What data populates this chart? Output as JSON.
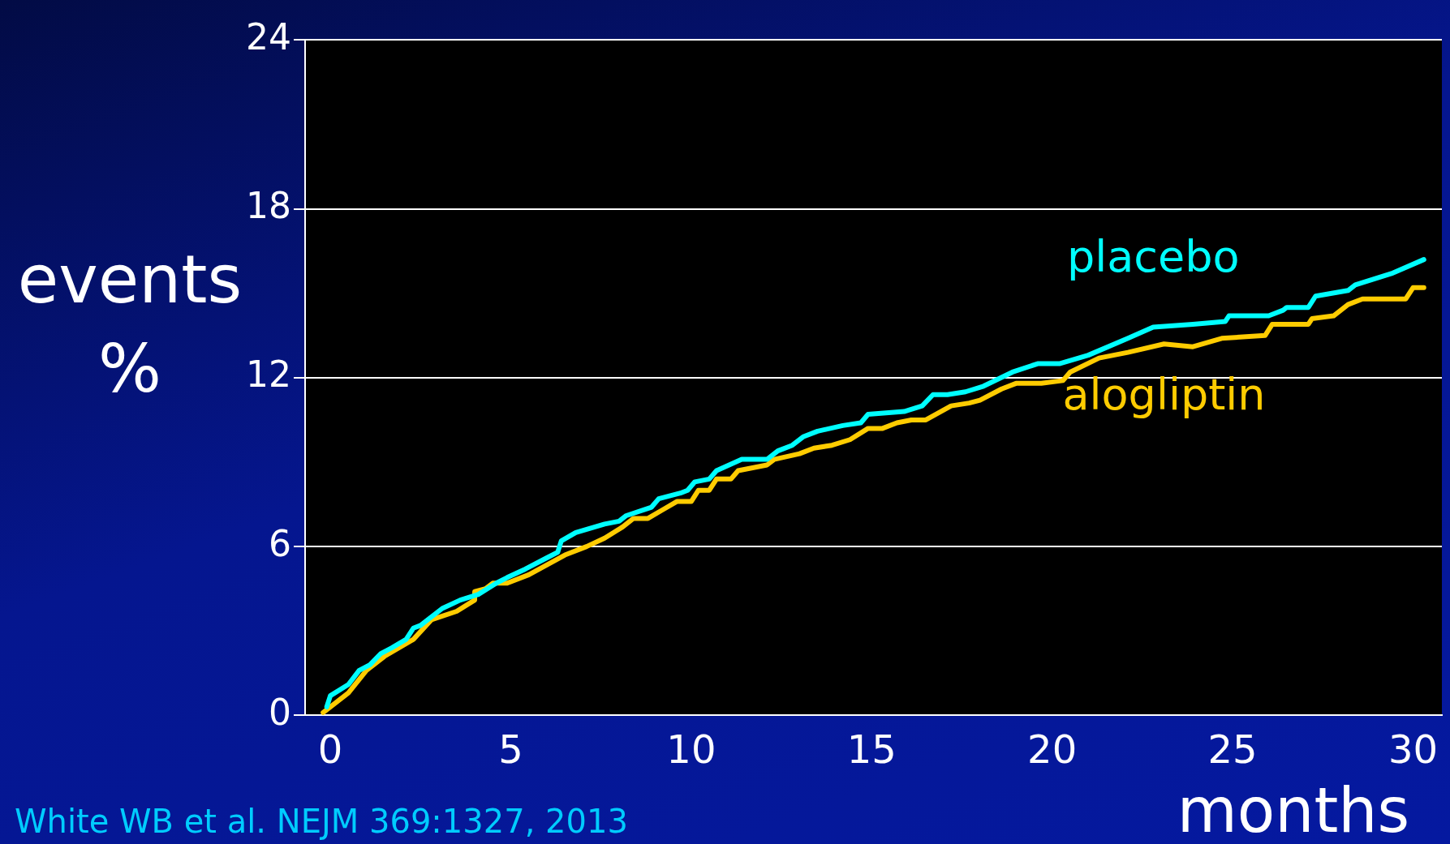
{
  "chart_data": {
    "type": "line",
    "xlabel": "months",
    "ylabel": "events %",
    "annotations": [
      "White WB et al. NEJM 369:1327, 2013"
    ],
    "xlim": [
      -0.7,
      30.8
    ],
    "xticks": [
      0,
      5,
      10,
      15,
      20,
      25,
      30
    ],
    "ylim": [
      0,
      24
    ],
    "yticks": [
      0,
      6,
      12,
      18,
      24
    ],
    "grid": "y",
    "legend": false,
    "marker": "none",
    "line_style": "solid",
    "series": [
      {
        "name": "placebo",
        "color": "#00ffff",
        "x": [
          -0.1,
          0.0,
          0.5,
          0.8,
          1.1,
          1.4,
          1.7,
          2.1,
          2.3,
          2.5,
          3.1,
          3.6,
          4.1,
          4.6,
          4.9,
          5.4,
          6.0,
          6.3,
          6.4,
          6.8,
          7.6,
          8.0,
          8.2,
          8.9,
          9.1,
          9.7,
          9.9,
          10.1,
          10.5,
          10.7,
          11.4,
          12.1,
          12.4,
          12.8,
          13.1,
          13.5,
          14.2,
          14.7,
          14.9,
          15.9,
          16.4,
          16.7,
          17.1,
          17.6,
          18.1,
          18.9,
          19.6,
          20.2,
          21.0,
          22.1,
          22.8,
          23.9,
          24.8,
          24.9,
          26.0,
          26.4,
          26.5,
          27.1,
          27.3,
          28.2,
          28.4,
          28.9,
          29.4,
          30.3
        ],
        "values": [
          0.3,
          0.7,
          1.1,
          1.6,
          1.8,
          2.2,
          2.4,
          2.7,
          3.1,
          3.2,
          3.8,
          4.1,
          4.3,
          4.7,
          4.9,
          5.2,
          5.6,
          5.8,
          6.2,
          6.5,
          6.8,
          6.9,
          7.1,
          7.4,
          7.7,
          7.9,
          8.0,
          8.3,
          8.4,
          8.7,
          9.1,
          9.1,
          9.4,
          9.6,
          9.9,
          10.1,
          10.3,
          10.4,
          10.7,
          10.8,
          11.0,
          11.4,
          11.4,
          11.5,
          11.7,
          12.2,
          12.5,
          12.5,
          12.8,
          13.4,
          13.8,
          13.9,
          14.0,
          14.2,
          14.2,
          14.4,
          14.5,
          14.5,
          14.9,
          15.1,
          15.3,
          15.5,
          15.7,
          16.2
        ]
      },
      {
        "name": "alogliptin",
        "color": "#ffcc00",
        "x": [
          -0.2,
          0.5,
          1.0,
          1.5,
          2.3,
          2.8,
          3.5,
          4.0,
          4.0,
          4.3,
          4.5,
          4.9,
          5.5,
          6.5,
          7.1,
          7.6,
          8.1,
          8.4,
          8.8,
          9.2,
          9.6,
          10.0,
          10.2,
          10.5,
          10.7,
          11.1,
          11.3,
          12.1,
          12.3,
          13.0,
          13.4,
          13.9,
          14.4,
          14.9,
          15.3,
          15.7,
          16.1,
          16.5,
          17.2,
          17.7,
          18.0,
          18.6,
          19.0,
          19.7,
          20.3,
          20.5,
          21.3,
          22.1,
          23.1,
          23.9,
          24.7,
          25.9,
          26.1,
          27.1,
          27.2,
          27.8,
          28.2,
          28.6,
          29.8,
          30.0,
          30.3
        ],
        "values": [
          0.1,
          0.8,
          1.6,
          2.1,
          2.7,
          3.4,
          3.7,
          4.1,
          4.4,
          4.5,
          4.7,
          4.7,
          5.0,
          5.7,
          6.0,
          6.3,
          6.7,
          7.0,
          7.0,
          7.3,
          7.6,
          7.6,
          8.0,
          8.0,
          8.4,
          8.4,
          8.7,
          8.9,
          9.1,
          9.3,
          9.5,
          9.6,
          9.8,
          10.2,
          10.2,
          10.4,
          10.5,
          10.5,
          11.0,
          11.1,
          11.2,
          11.6,
          11.8,
          11.8,
          11.9,
          12.2,
          12.7,
          12.9,
          13.2,
          13.1,
          13.4,
          13.5,
          13.9,
          13.9,
          14.1,
          14.2,
          14.6,
          14.8,
          14.8,
          15.2,
          15.2
        ]
      }
    ]
  }
}
